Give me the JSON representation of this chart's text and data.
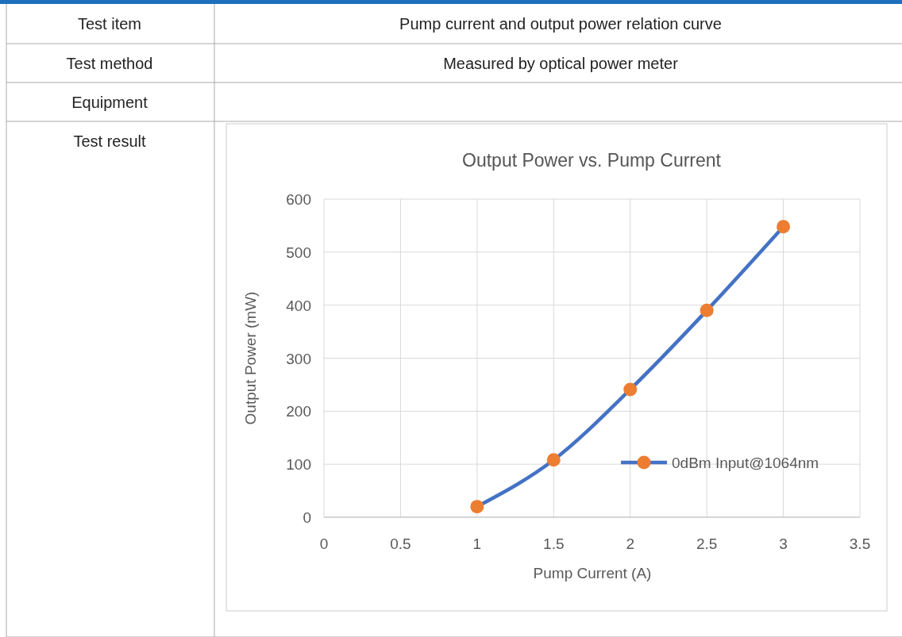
{
  "chart_data": {
    "type": "line",
    "title": "Output Power vs. Pump Current",
    "xlabel": "Pump Current (A)",
    "ylabel": "Output Power (mW)",
    "annotations": [
      "Test item",
      "Pump current and output power relation curve",
      "Test method",
      "Measured by optical power meter",
      "Equipment",
      "Test result"
    ],
    "x": [
      1,
      1.5,
      2,
      2.5,
      3
    ],
    "series": [
      {
        "name": "0dBm Input@1064nm",
        "color": "#4472c4",
        "colors": [
          "#ed7d31",
          "#ed7d31",
          "#ed7d31",
          "#ed7d31",
          "#ed7d31"
        ],
        "values": [
          20,
          108,
          241,
          390,
          548
        ]
      }
    ],
    "xlim": [
      0,
      3.5
    ],
    "xticks": [
      0,
      0.5,
      1,
      1.5,
      2,
      2.5,
      3,
      3.5
    ],
    "ylim": [
      0,
      600
    ],
    "yticks": [
      0,
      100,
      200,
      300,
      400,
      500,
      600
    ],
    "grid": true,
    "legend": "right",
    "marker": "circle",
    "line_style": "solid"
  }
}
